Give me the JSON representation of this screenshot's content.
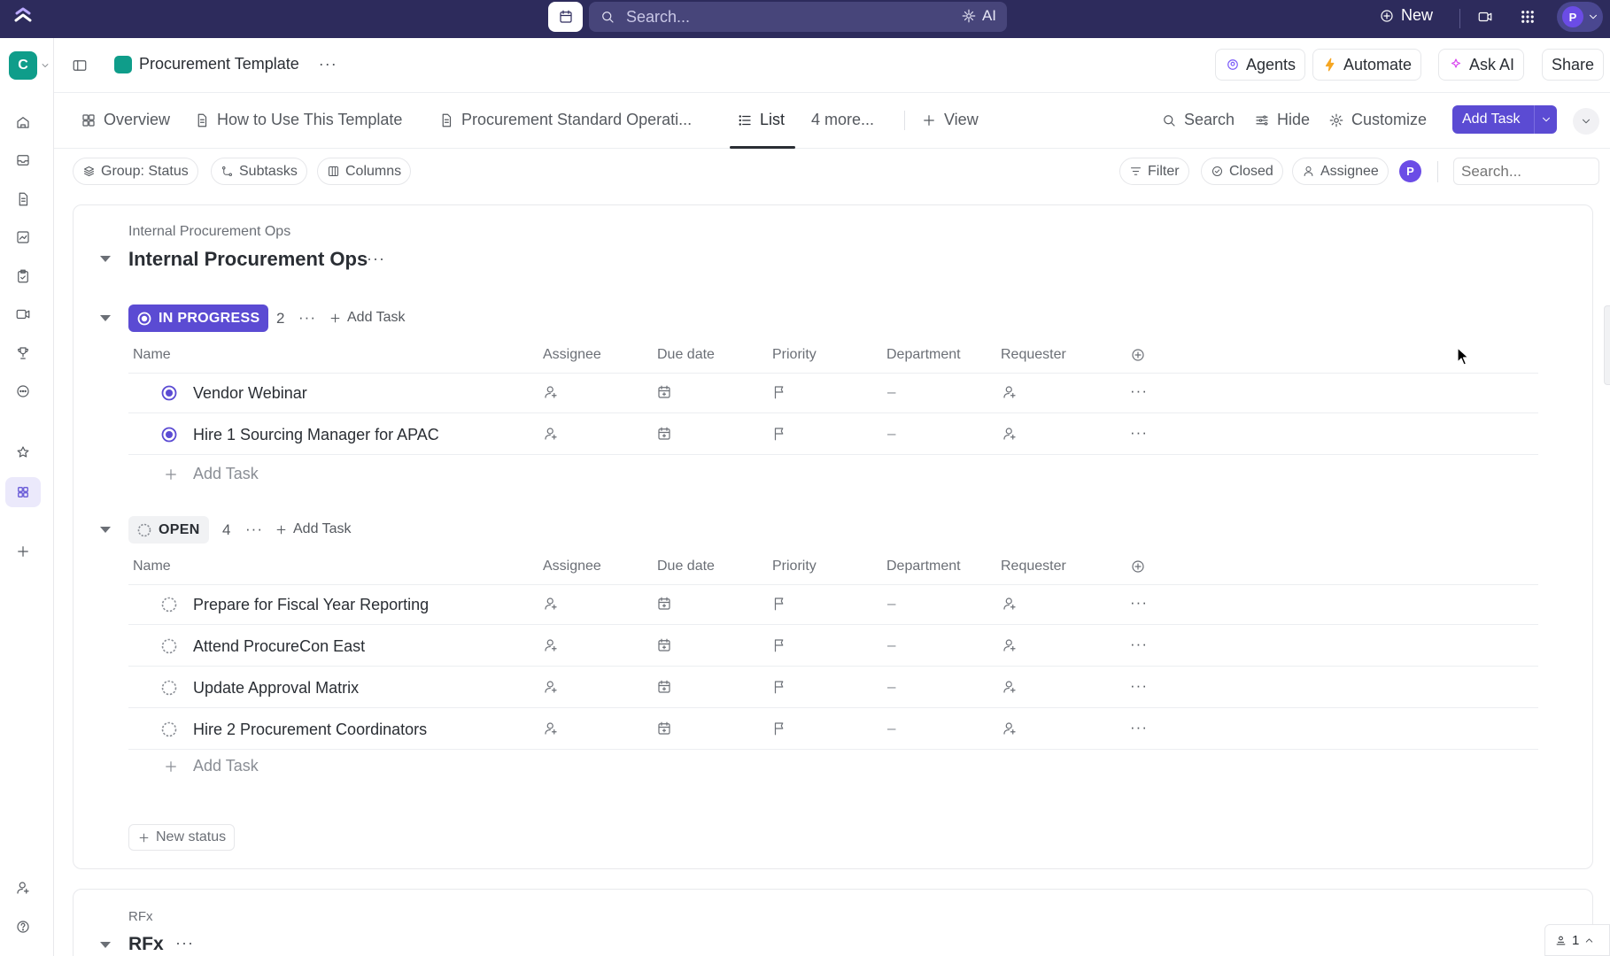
{
  "topbar": {
    "search_placeholder": "Search...",
    "ai_label": "AI",
    "new_label": "New",
    "avatar_initial": "P"
  },
  "workspace": {
    "initial": "C"
  },
  "header": {
    "breadcrumb_title": "Procurement Template",
    "agents_label": "Agents",
    "automate_label": "Automate",
    "ask_ai_label": "Ask AI",
    "share_label": "Share"
  },
  "views": {
    "tabs": [
      {
        "label": "Overview",
        "icon": "overview-icon"
      },
      {
        "label": "How to Use This Template",
        "icon": "doc-icon"
      },
      {
        "label": "Procurement Standard Operati...",
        "icon": "doc-icon"
      },
      {
        "label": "List",
        "icon": "list-icon",
        "active": true
      },
      {
        "label": "4 more..."
      }
    ],
    "add_view_label": "View",
    "search_label": "Search",
    "hide_label": "Hide",
    "customize_label": "Customize",
    "add_task_label": "Add Task"
  },
  "filters": {
    "group_label": "Group: Status",
    "subtasks_label": "Subtasks",
    "columns_label": "Columns",
    "filter_label": "Filter",
    "closed_label": "Closed",
    "assignee_label": "Assignee",
    "avatar_initial": "P",
    "search_placeholder": "Search..."
  },
  "list": {
    "super_title": "Internal Procurement Ops",
    "title": "Internal Procurement Ops",
    "columns": [
      "Name",
      "Assignee",
      "Due date",
      "Priority",
      "Department",
      "Requester"
    ],
    "groups": [
      {
        "status": "IN PROGRESS",
        "count": "2",
        "add_label": "Add Task",
        "tasks": [
          {
            "name": "Vendor Webinar",
            "department": "–"
          },
          {
            "name": "Hire 1 Sourcing Manager for APAC",
            "department": "–"
          }
        ]
      },
      {
        "status": "OPEN",
        "count": "4",
        "add_label": "Add Task",
        "tasks": [
          {
            "name": "Prepare for Fiscal Year Reporting",
            "department": "–"
          },
          {
            "name": "Attend ProcureCon East",
            "department": "–"
          },
          {
            "name": "Update Approval Matrix",
            "department": "–"
          },
          {
            "name": "Hire 2 Procurement Coordinators",
            "department": "–"
          }
        ]
      }
    ],
    "add_task_row_label": "Add Task",
    "new_status_label": "New status"
  },
  "list2": {
    "super_title": "RFx",
    "title": "RFx"
  },
  "bottom": {
    "count": "1"
  },
  "colors": {
    "topbar_bg": "#2d2b5c",
    "accent": "#5b4bd3",
    "workspace": "#0f9d8a",
    "in_progress": "#5b4bd3"
  }
}
